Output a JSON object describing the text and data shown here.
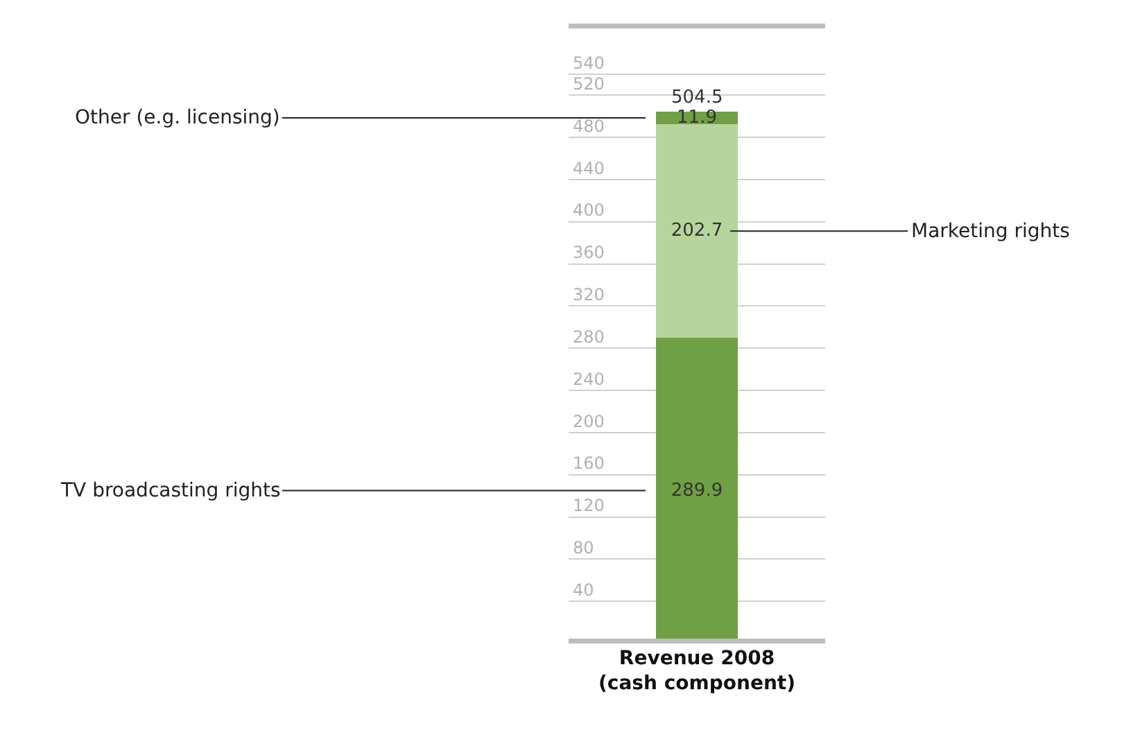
{
  "chart_data": {
    "type": "bar",
    "stacked": true,
    "categories": [
      "Revenue 2008\n(cash component)"
    ],
    "series": [
      {
        "name": "TV broadcasting rights",
        "color": "#70a044",
        "values": [
          289.9
        ]
      },
      {
        "name": "Marketing rights",
        "color": "#b6d59c",
        "values": [
          202.7
        ]
      },
      {
        "name": "Other (e.g. licensing)",
        "color": "#70a044",
        "values": [
          11.9
        ]
      }
    ],
    "data_labels": true,
    "totals": [
      "504.5"
    ],
    "ylim": [
      0,
      588
    ],
    "yticks": [
      40,
      80,
      120,
      160,
      200,
      240,
      280,
      320,
      360,
      400,
      440,
      480,
      520,
      540
    ],
    "grid": "y"
  }
}
